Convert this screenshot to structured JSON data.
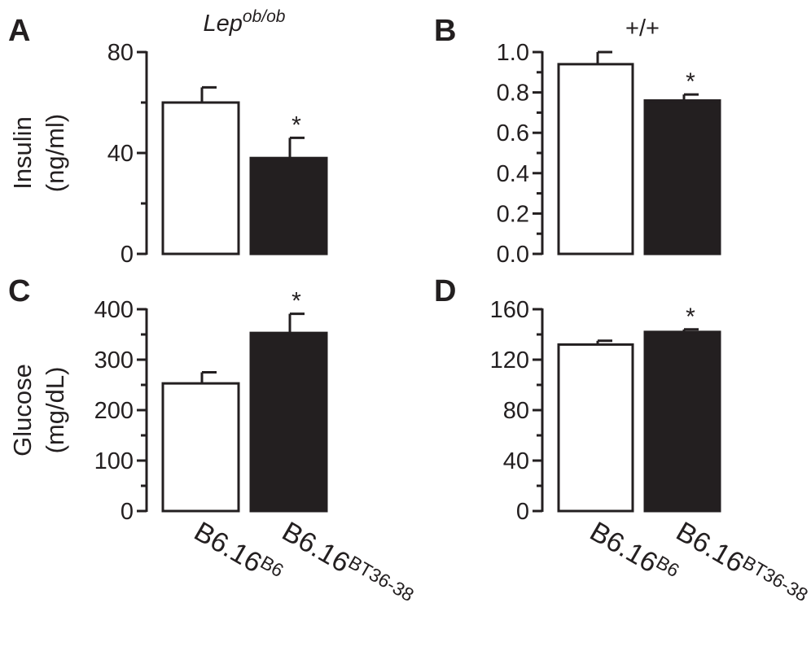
{
  "colors": {
    "ink": "#231f20",
    "open_bar": "#ffffff",
    "filled_bar": "#231f20"
  },
  "x_categories": [
    {
      "base": "B6.16",
      "sup": "B6"
    },
    {
      "base": "B6.16",
      "sup": "BT36-38"
    }
  ],
  "chart_data": [
    {
      "type": "bar",
      "panel": "A",
      "title_base": "Lep",
      "title_sup": "ob/ob",
      "ylabel_line1": "Insulin",
      "ylabel_line2": "(ng/ml)",
      "ylim": [
        0,
        80
      ],
      "yticks": [
        0,
        40,
        80
      ],
      "ytick_labels": [
        "0",
        "40",
        "80"
      ],
      "categories": [
        "B6.16B6",
        "B6.16BT36-38"
      ],
      "values": [
        60,
        38
      ],
      "errors": [
        6,
        8
      ],
      "significance": [
        "",
        "*"
      ]
    },
    {
      "type": "bar",
      "panel": "B",
      "title_base": "+/+",
      "title_sup": "",
      "ylim": [
        0,
        1.0
      ],
      "yticks": [
        0,
        0.2,
        0.4,
        0.6,
        0.8,
        1.0
      ],
      "ytick_labels": [
        "0.0",
        "0.2",
        "0.4",
        "0.6",
        "0.8",
        "1.0"
      ],
      "categories": [
        "B6.16B6",
        "B6.16BT36-38"
      ],
      "values": [
        0.94,
        0.76
      ],
      "errors": [
        0.06,
        0.03
      ],
      "significance": [
        "",
        "*"
      ]
    },
    {
      "type": "bar",
      "panel": "C",
      "ylabel_line1": "Glucose",
      "ylabel_line2": "(mg/dL)",
      "ylim": [
        0,
        400
      ],
      "yticks": [
        0,
        100,
        200,
        300,
        400
      ],
      "ytick_labels": [
        "0",
        "100",
        "200",
        "300",
        "400"
      ],
      "categories": [
        "B6.16B6",
        "B6.16BT36-38"
      ],
      "values": [
        253,
        353
      ],
      "errors": [
        22,
        38
      ],
      "significance": [
        "",
        "*"
      ]
    },
    {
      "type": "bar",
      "panel": "D",
      "ylim": [
        0,
        160
      ],
      "yticks": [
        0,
        40,
        80,
        120,
        160
      ],
      "ytick_labels": [
        "0",
        "40",
        "80",
        "120",
        "160"
      ],
      "categories": [
        "B6.16B6",
        "B6.16BT36-38"
      ],
      "values": [
        132,
        142
      ],
      "errors": [
        3,
        2
      ],
      "significance": [
        "",
        "*"
      ]
    }
  ]
}
